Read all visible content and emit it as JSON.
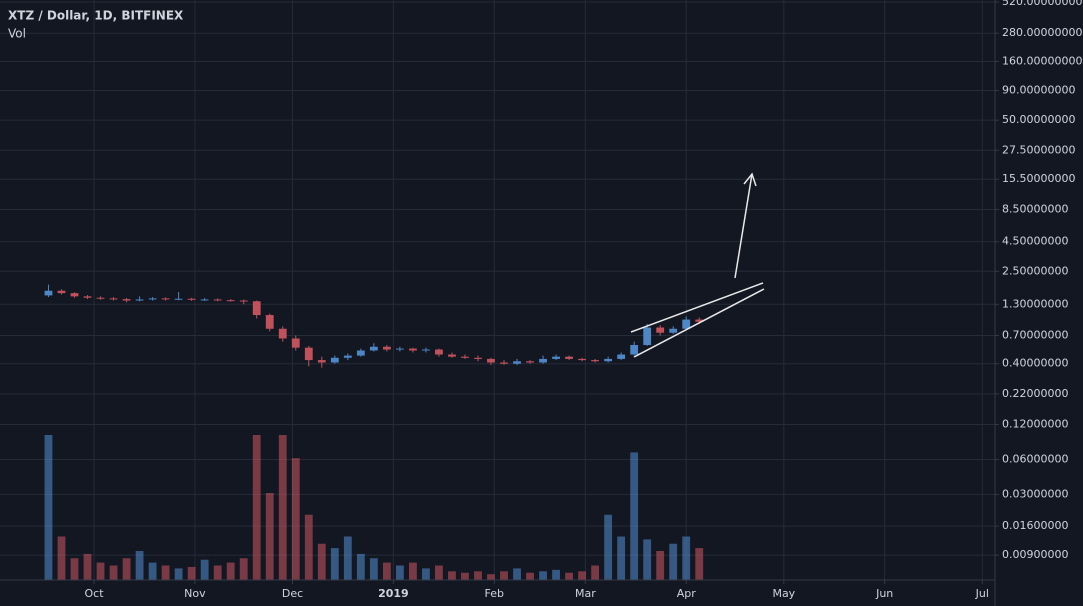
{
  "chart_data": {
    "type": "candlestick",
    "title": "XTZ / Dollar, 1D, BITFINEX",
    "volume_label": "Vol",
    "log_scale": true,
    "grid": true,
    "up_color": "#4f86c6",
    "down_color": "#c0525e",
    "x": [
      -14,
      -10,
      -6,
      -2,
      2,
      6,
      10,
      14,
      18,
      22,
      26,
      30,
      34,
      38,
      42,
      46,
      50,
      54,
      58,
      62,
      66,
      70,
      74,
      78,
      82,
      86,
      90,
      94,
      98,
      102,
      106,
      110,
      114,
      118,
      122,
      126,
      130,
      134,
      138,
      142,
      146,
      150,
      154,
      158,
      162,
      166,
      170,
      174,
      178,
      182,
      186
    ],
    "open": [
      1.55,
      1.7,
      1.62,
      1.52,
      1.48,
      1.46,
      1.44,
      1.4,
      1.43,
      1.46,
      1.44,
      1.45,
      1.42,
      1.43,
      1.41,
      1.4,
      1.38,
      1.05,
      0.8,
      0.66,
      0.55,
      0.43,
      0.41,
      0.45,
      0.47,
      0.52,
      0.56,
      0.53,
      0.54,
      0.52,
      0.53,
      0.48,
      0.46,
      0.45,
      0.44,
      0.41,
      0.4,
      0.42,
      0.41,
      0.44,
      0.46,
      0.44,
      0.43,
      0.42,
      0.44,
      0.48,
      0.58,
      0.82,
      0.74,
      0.8,
      0.96
    ],
    "high": [
      1.92,
      1.75,
      1.65,
      1.56,
      1.52,
      1.5,
      1.47,
      1.52,
      1.5,
      1.49,
      1.66,
      1.48,
      1.47,
      1.46,
      1.44,
      1.43,
      1.4,
      1.08,
      0.84,
      0.7,
      0.57,
      0.46,
      0.47,
      0.49,
      0.54,
      0.6,
      0.58,
      0.56,
      0.55,
      0.55,
      0.54,
      0.5,
      0.48,
      0.47,
      0.45,
      0.43,
      0.44,
      0.43,
      0.47,
      0.48,
      0.47,
      0.45,
      0.44,
      0.46,
      0.5,
      0.62,
      0.88,
      0.86,
      0.84,
      1.02,
      1.0
    ],
    "low": [
      1.5,
      1.58,
      1.48,
      1.44,
      1.42,
      1.4,
      1.35,
      1.38,
      1.4,
      1.4,
      1.41,
      1.39,
      1.39,
      1.38,
      1.37,
      1.3,
      0.98,
      0.76,
      0.62,
      0.52,
      0.38,
      0.37,
      0.4,
      0.43,
      0.46,
      0.51,
      0.51,
      0.51,
      0.5,
      0.5,
      0.46,
      0.45,
      0.44,
      0.42,
      0.39,
      0.39,
      0.39,
      0.4,
      0.4,
      0.43,
      0.43,
      0.42,
      0.41,
      0.41,
      0.43,
      0.47,
      0.57,
      0.7,
      0.72,
      0.78,
      0.88
    ],
    "close": [
      1.7,
      1.62,
      1.52,
      1.48,
      1.46,
      1.44,
      1.4,
      1.43,
      1.46,
      1.44,
      1.45,
      1.42,
      1.43,
      1.41,
      1.4,
      1.38,
      1.05,
      0.8,
      0.66,
      0.55,
      0.43,
      0.41,
      0.45,
      0.47,
      0.52,
      0.56,
      0.53,
      0.54,
      0.52,
      0.53,
      0.48,
      0.46,
      0.45,
      0.44,
      0.41,
      0.4,
      0.42,
      0.41,
      0.44,
      0.46,
      0.44,
      0.43,
      0.42,
      0.44,
      0.48,
      0.58,
      0.82,
      0.74,
      0.8,
      0.96,
      0.92
    ],
    "volume": [
      100,
      30,
      15,
      18,
      12,
      10,
      15,
      20,
      12,
      10,
      8,
      9,
      14,
      10,
      12,
      15,
      100,
      60,
      100,
      84,
      45,
      25,
      22,
      30,
      18,
      15,
      12,
      10,
      12,
      8,
      10,
      6,
      5,
      6,
      4,
      6,
      8,
      5,
      6,
      7,
      5,
      6,
      10,
      45,
      30,
      88,
      28,
      20,
      25,
      30,
      22
    ],
    "volume_ylim": [
      0,
      100
    ],
    "xlim": [
      -28.9,
      276.9
    ],
    "xticks": [
      {
        "value": 0,
        "label": "Oct"
      },
      {
        "value": 31,
        "label": "Nov"
      },
      {
        "value": 61,
        "label": "Dec"
      },
      {
        "value": 92,
        "label": "2019"
      },
      {
        "value": 123,
        "label": "Feb"
      },
      {
        "value": 151,
        "label": "Mar"
      },
      {
        "value": 182,
        "label": "Apr"
      },
      {
        "value": 212,
        "label": "May"
      },
      {
        "value": 243,
        "label": "Jun"
      },
      {
        "value": 273,
        "label": "Jul"
      }
    ],
    "ylim": [
      0.0055,
      541
    ],
    "yticks": [
      {
        "value": 520,
        "label": "520.00000000"
      },
      {
        "value": 280,
        "label": "280.00000000"
      },
      {
        "value": 160,
        "label": "160.00000000"
      },
      {
        "value": 90,
        "label": "90.00000000"
      },
      {
        "value": 50,
        "label": "50.00000000"
      },
      {
        "value": 27.5,
        "label": "27.50000000"
      },
      {
        "value": 15.5,
        "label": "15.50000000"
      },
      {
        "value": 8.5,
        "label": "8.50000000"
      },
      {
        "value": 4.5,
        "label": "4.50000000"
      },
      {
        "value": 2.5,
        "label": "2.50000000"
      },
      {
        "value": 1.3,
        "label": "1.30000000"
      },
      {
        "value": 0.7,
        "label": "0.70000000"
      },
      {
        "value": 0.4,
        "label": "0.40000000"
      },
      {
        "value": 0.22,
        "label": "0.22000000"
      },
      {
        "value": 0.12,
        "label": "0.12000000"
      },
      {
        "value": 0.06,
        "label": "0.06000000"
      },
      {
        "value": 0.03,
        "label": "0.03000000"
      },
      {
        "value": 0.016,
        "label": "0.01600000"
      },
      {
        "value": 0.009,
        "label": "0.00900000"
      }
    ]
  }
}
